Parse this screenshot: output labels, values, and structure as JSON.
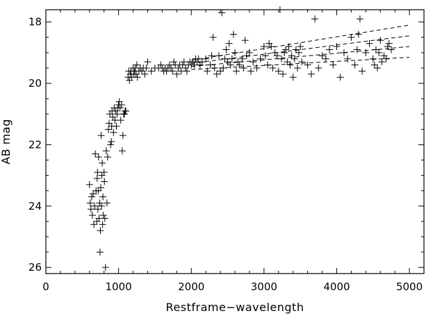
{
  "chart_data": {
    "type": "scatter",
    "xlabel": "Restframe−wavelength",
    "ylabel": "AB  mag",
    "xlim": [
      0,
      5200
    ],
    "ylim": [
      26.2,
      17.6
    ],
    "y_inverted": true,
    "x_ticks": [
      0,
      1000,
      2000,
      3000,
      4000,
      5000
    ],
    "y_ticks": [
      18,
      20,
      22,
      24,
      26
    ],
    "marker": "plus",
    "color": "#000000",
    "grid": false,
    "series": [
      {
        "points": [
          [
            600,
            23.3
          ],
          [
            610,
            23.9
          ],
          [
            620,
            24.1
          ],
          [
            630,
            23.7
          ],
          [
            640,
            24.3
          ],
          [
            650,
            23.6
          ],
          [
            660,
            24.6
          ],
          [
            670,
            24.0
          ],
          [
            680,
            22.3
          ],
          [
            690,
            23.5
          ],
          [
            700,
            24.5
          ],
          [
            705,
            23.1
          ],
          [
            710,
            22.9
          ],
          [
            715,
            24.1
          ],
          [
            720,
            23.5
          ],
          [
            725,
            22.4
          ],
          [
            730,
            24.4
          ],
          [
            740,
            23.9
          ],
          [
            745,
            25.5
          ],
          [
            750,
            24.8
          ],
          [
            755,
            23.4
          ],
          [
            760,
            21.7
          ],
          [
            765,
            24.0
          ],
          [
            770,
            23.0
          ],
          [
            775,
            22.6
          ],
          [
            780,
            24.6
          ],
          [
            785,
            23.7
          ],
          [
            790,
            24.3
          ],
          [
            800,
            22.9
          ],
          [
            805,
            23.2
          ],
          [
            810,
            24.4
          ],
          [
            820,
            26.0
          ],
          [
            830,
            22.2
          ],
          [
            840,
            23.9
          ],
          [
            850,
            22.4
          ],
          [
            860,
            21.5
          ],
          [
            870,
            21.3
          ],
          [
            880,
            21.0
          ],
          [
            890,
            22.0
          ],
          [
            900,
            21.9
          ],
          [
            905,
            21.4
          ],
          [
            910,
            20.9
          ],
          [
            920,
            21.1
          ],
          [
            930,
            21.6
          ],
          [
            940,
            20.8
          ],
          [
            950,
            21.2
          ],
          [
            960,
            20.9
          ],
          [
            970,
            21.4
          ],
          [
            980,
            21.0
          ],
          [
            990,
            20.8
          ],
          [
            1000,
            20.7
          ],
          [
            1010,
            20.6
          ],
          [
            1020,
            20.8
          ],
          [
            1030,
            21.2
          ],
          [
            1040,
            20.7
          ],
          [
            1050,
            22.2
          ],
          [
            1060,
            21.7
          ],
          [
            1070,
            21.0
          ],
          [
            1080,
            21.0
          ],
          [
            1090,
            20.9
          ],
          [
            1100,
            20.9
          ],
          [
            1130,
            19.8
          ],
          [
            1140,
            19.6
          ],
          [
            1150,
            19.9
          ],
          [
            1160,
            19.7
          ],
          [
            1170,
            19.6
          ],
          [
            1180,
            19.8
          ],
          [
            1200,
            19.5
          ],
          [
            1210,
            19.7
          ],
          [
            1220,
            19.6
          ],
          [
            1230,
            19.5
          ],
          [
            1240,
            19.7
          ],
          [
            1250,
            19.4
          ],
          [
            1260,
            19.8
          ],
          [
            1280,
            19.6
          ],
          [
            1300,
            19.5
          ],
          [
            1320,
            19.6
          ],
          [
            1340,
            19.5
          ],
          [
            1360,
            19.7
          ],
          [
            1380,
            19.5
          ],
          [
            1400,
            19.3
          ],
          [
            1450,
            19.6
          ],
          [
            1500,
            19.5
          ],
          [
            1550,
            19.5
          ],
          [
            1580,
            19.4
          ],
          [
            1600,
            19.5
          ],
          [
            1620,
            19.6
          ],
          [
            1640,
            19.5
          ],
          [
            1660,
            19.6
          ],
          [
            1680,
            19.5
          ],
          [
            1700,
            19.4
          ],
          [
            1720,
            19.5
          ],
          [
            1740,
            19.6
          ],
          [
            1760,
            19.3
          ],
          [
            1780,
            19.4
          ],
          [
            1800,
            19.7
          ],
          [
            1820,
            19.5
          ],
          [
            1840,
            19.4
          ],
          [
            1860,
            19.6
          ],
          [
            1880,
            19.4
          ],
          [
            1900,
            19.3
          ],
          [
            1920,
            19.5
          ],
          [
            1940,
            19.6
          ],
          [
            1960,
            19.4
          ],
          [
            1980,
            19.3
          ],
          [
            2000,
            19.4
          ],
          [
            2020,
            19.3
          ],
          [
            2040,
            19.4
          ],
          [
            2060,
            19.2
          ],
          [
            2080,
            19.3
          ],
          [
            2100,
            19.2
          ],
          [
            2120,
            19.4
          ],
          [
            2150,
            19.3
          ],
          [
            2200,
            19.2
          ],
          [
            2220,
            19.6
          ],
          [
            2260,
            19.4
          ],
          [
            2280,
            19.1
          ],
          [
            2300,
            18.5
          ],
          [
            2320,
            19.5
          ],
          [
            2350,
            19.7
          ],
          [
            2380,
            19.1
          ],
          [
            2400,
            19.6
          ],
          [
            2420,
            17.7
          ],
          [
            2440,
            19.5
          ],
          [
            2460,
            19.2
          ],
          [
            2480,
            18.9
          ],
          [
            2500,
            19.3
          ],
          [
            2520,
            18.7
          ],
          [
            2540,
            19.4
          ],
          [
            2560,
            19.2
          ],
          [
            2580,
            18.4
          ],
          [
            2600,
            19.0
          ],
          [
            2620,
            19.6
          ],
          [
            2640,
            19.3
          ],
          [
            2660,
            19.4
          ],
          [
            2700,
            19.2
          ],
          [
            2720,
            19.5
          ],
          [
            2740,
            18.6
          ],
          [
            2760,
            19.1
          ],
          [
            2800,
            19.0
          ],
          [
            2820,
            19.6
          ],
          [
            2850,
            19.3
          ],
          [
            2900,
            19.5
          ],
          [
            2950,
            19.2
          ],
          [
            3000,
            18.8
          ],
          [
            3020,
            19.1
          ],
          [
            3050,
            19.4
          ],
          [
            3070,
            18.7
          ],
          [
            3100,
            18.8
          ],
          [
            3120,
            19.5
          ],
          [
            3150,
            19.0
          ],
          [
            3180,
            19.1
          ],
          [
            3200,
            19.6
          ],
          [
            3220,
            17.6
          ],
          [
            3240,
            19.2
          ],
          [
            3260,
            19.7
          ],
          [
            3280,
            19.0
          ],
          [
            3300,
            18.9
          ],
          [
            3320,
            19.3
          ],
          [
            3340,
            18.8
          ],
          [
            3360,
            19.4
          ],
          [
            3380,
            19.1
          ],
          [
            3400,
            19.8
          ],
          [
            3420,
            19.2
          ],
          [
            3440,
            18.9
          ],
          [
            3460,
            19.5
          ],
          [
            3480,
            19.0
          ],
          [
            3500,
            18.8
          ],
          [
            3520,
            19.3
          ],
          [
            3600,
            19.4
          ],
          [
            3650,
            19.7
          ],
          [
            3700,
            17.9
          ],
          [
            3750,
            19.5
          ],
          [
            3800,
            19.1
          ],
          [
            3850,
            19.2
          ],
          [
            3900,
            18.9
          ],
          [
            3950,
            19.4
          ],
          [
            4000,
            18.8
          ],
          [
            4050,
            19.8
          ],
          [
            4100,
            19.0
          ],
          [
            4150,
            19.2
          ],
          [
            4200,
            18.5
          ],
          [
            4250,
            19.4
          ],
          [
            4280,
            18.9
          ],
          [
            4300,
            18.4
          ],
          [
            4320,
            17.9
          ],
          [
            4350,
            19.6
          ],
          [
            4400,
            19.0
          ],
          [
            4450,
            18.7
          ],
          [
            4500,
            19.2
          ],
          [
            4520,
            19.4
          ],
          [
            4540,
            18.9
          ],
          [
            4560,
            19.5
          ],
          [
            4580,
            19.0
          ],
          [
            4600,
            18.6
          ],
          [
            4620,
            19.3
          ],
          [
            4650,
            19.1
          ],
          [
            4680,
            19.2
          ],
          [
            4700,
            18.8
          ],
          [
            4720,
            18.7
          ],
          [
            4750,
            18.9
          ]
        ]
      }
    ],
    "fit_lines": [
      {
        "x": [
          2000,
          5000
        ],
        "y": [
          19.25,
          18.1
        ]
      },
      {
        "x": [
          2000,
          5000
        ],
        "y": [
          19.35,
          18.45
        ]
      },
      {
        "x": [
          2000,
          5000
        ],
        "y": [
          19.45,
          18.8
        ]
      },
      {
        "x": [
          2000,
          5000
        ],
        "y": [
          19.55,
          19.15
        ]
      }
    ]
  }
}
